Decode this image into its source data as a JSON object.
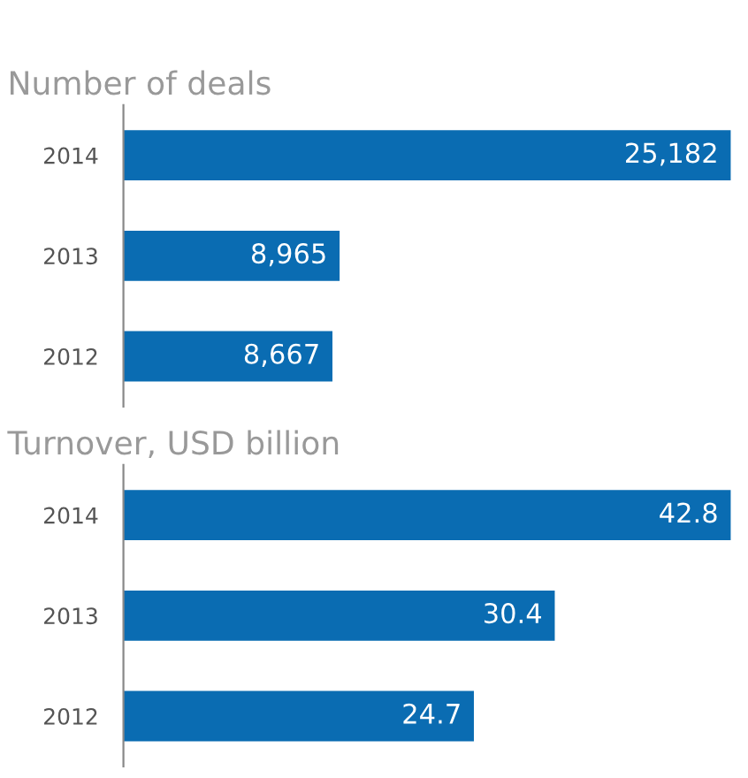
{
  "chart_data": [
    {
      "type": "bar",
      "orientation": "horizontal",
      "title": "Number of deals",
      "categories": [
        "2014",
        "2013",
        "2012"
      ],
      "values": [
        25182,
        8965,
        8667
      ],
      "value_labels": [
        "25,182",
        "8,965",
        "8,667"
      ],
      "color": "#0a6cb2",
      "grid": false,
      "legend": false,
      "tick_labels": "y"
    },
    {
      "type": "bar",
      "orientation": "horizontal",
      "title": "Turnover, USD billion",
      "categories": [
        "2014",
        "2013",
        "2012"
      ],
      "values": [
        42.8,
        30.4,
        24.7
      ],
      "value_labels": [
        "42.8",
        "30.4",
        "24.7"
      ],
      "color": "#0a6cb2",
      "grid": false,
      "legend": false,
      "tick_labels": "y"
    }
  ]
}
